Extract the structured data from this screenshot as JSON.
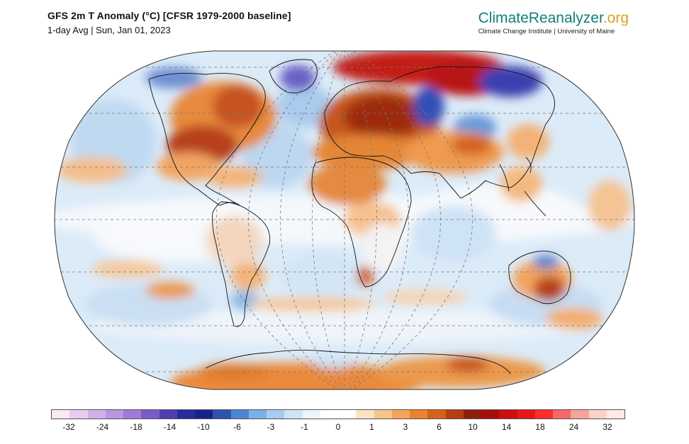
{
  "header": {
    "title": "GFS 2m T Anomaly (°C) [CFSR 1979-2000 baseline]",
    "subtitle": "1-day Avg | Sun, Jan 01, 2023"
  },
  "brand": {
    "name_main": "ClimateReanalyzer",
    "name_tld": ".org",
    "tagline": "Climate Change Institute | University of Maine",
    "colors": {
      "main": "#10807a",
      "tld": "#e0a020"
    }
  },
  "map": {
    "projection": "robinson",
    "variable": "2m temperature anomaly",
    "graticule": "dashed"
  },
  "colorbar": {
    "colors": [
      "#fbe8f4",
      "#e8cdef",
      "#d2b0ea",
      "#b995e2",
      "#9c7ad8",
      "#7a5cc8",
      "#4f3fb4",
      "#2b2aa0",
      "#17238c",
      "#2c54b0",
      "#4c86d2",
      "#79b0e6",
      "#a6cdf1",
      "#cfe3f7",
      "#ecf4fc",
      "#ffffff",
      "#ffffff",
      "#fbe2c4",
      "#f7c48c",
      "#f2a45a",
      "#ea832e",
      "#d6621a",
      "#b53f12",
      "#8e1e0c",
      "#a80d0d",
      "#cc1010",
      "#e81616",
      "#ff2d2d",
      "#f46a64",
      "#f6a49a",
      "#fad2c8",
      "#fdebe4"
    ],
    "tick_labels": [
      "-32",
      "-24",
      "-18",
      "-14",
      "-10",
      "-6",
      "-3",
      "-1",
      "0",
      "1",
      "3",
      "6",
      "10",
      "14",
      "18",
      "24",
      "32"
    ]
  }
}
